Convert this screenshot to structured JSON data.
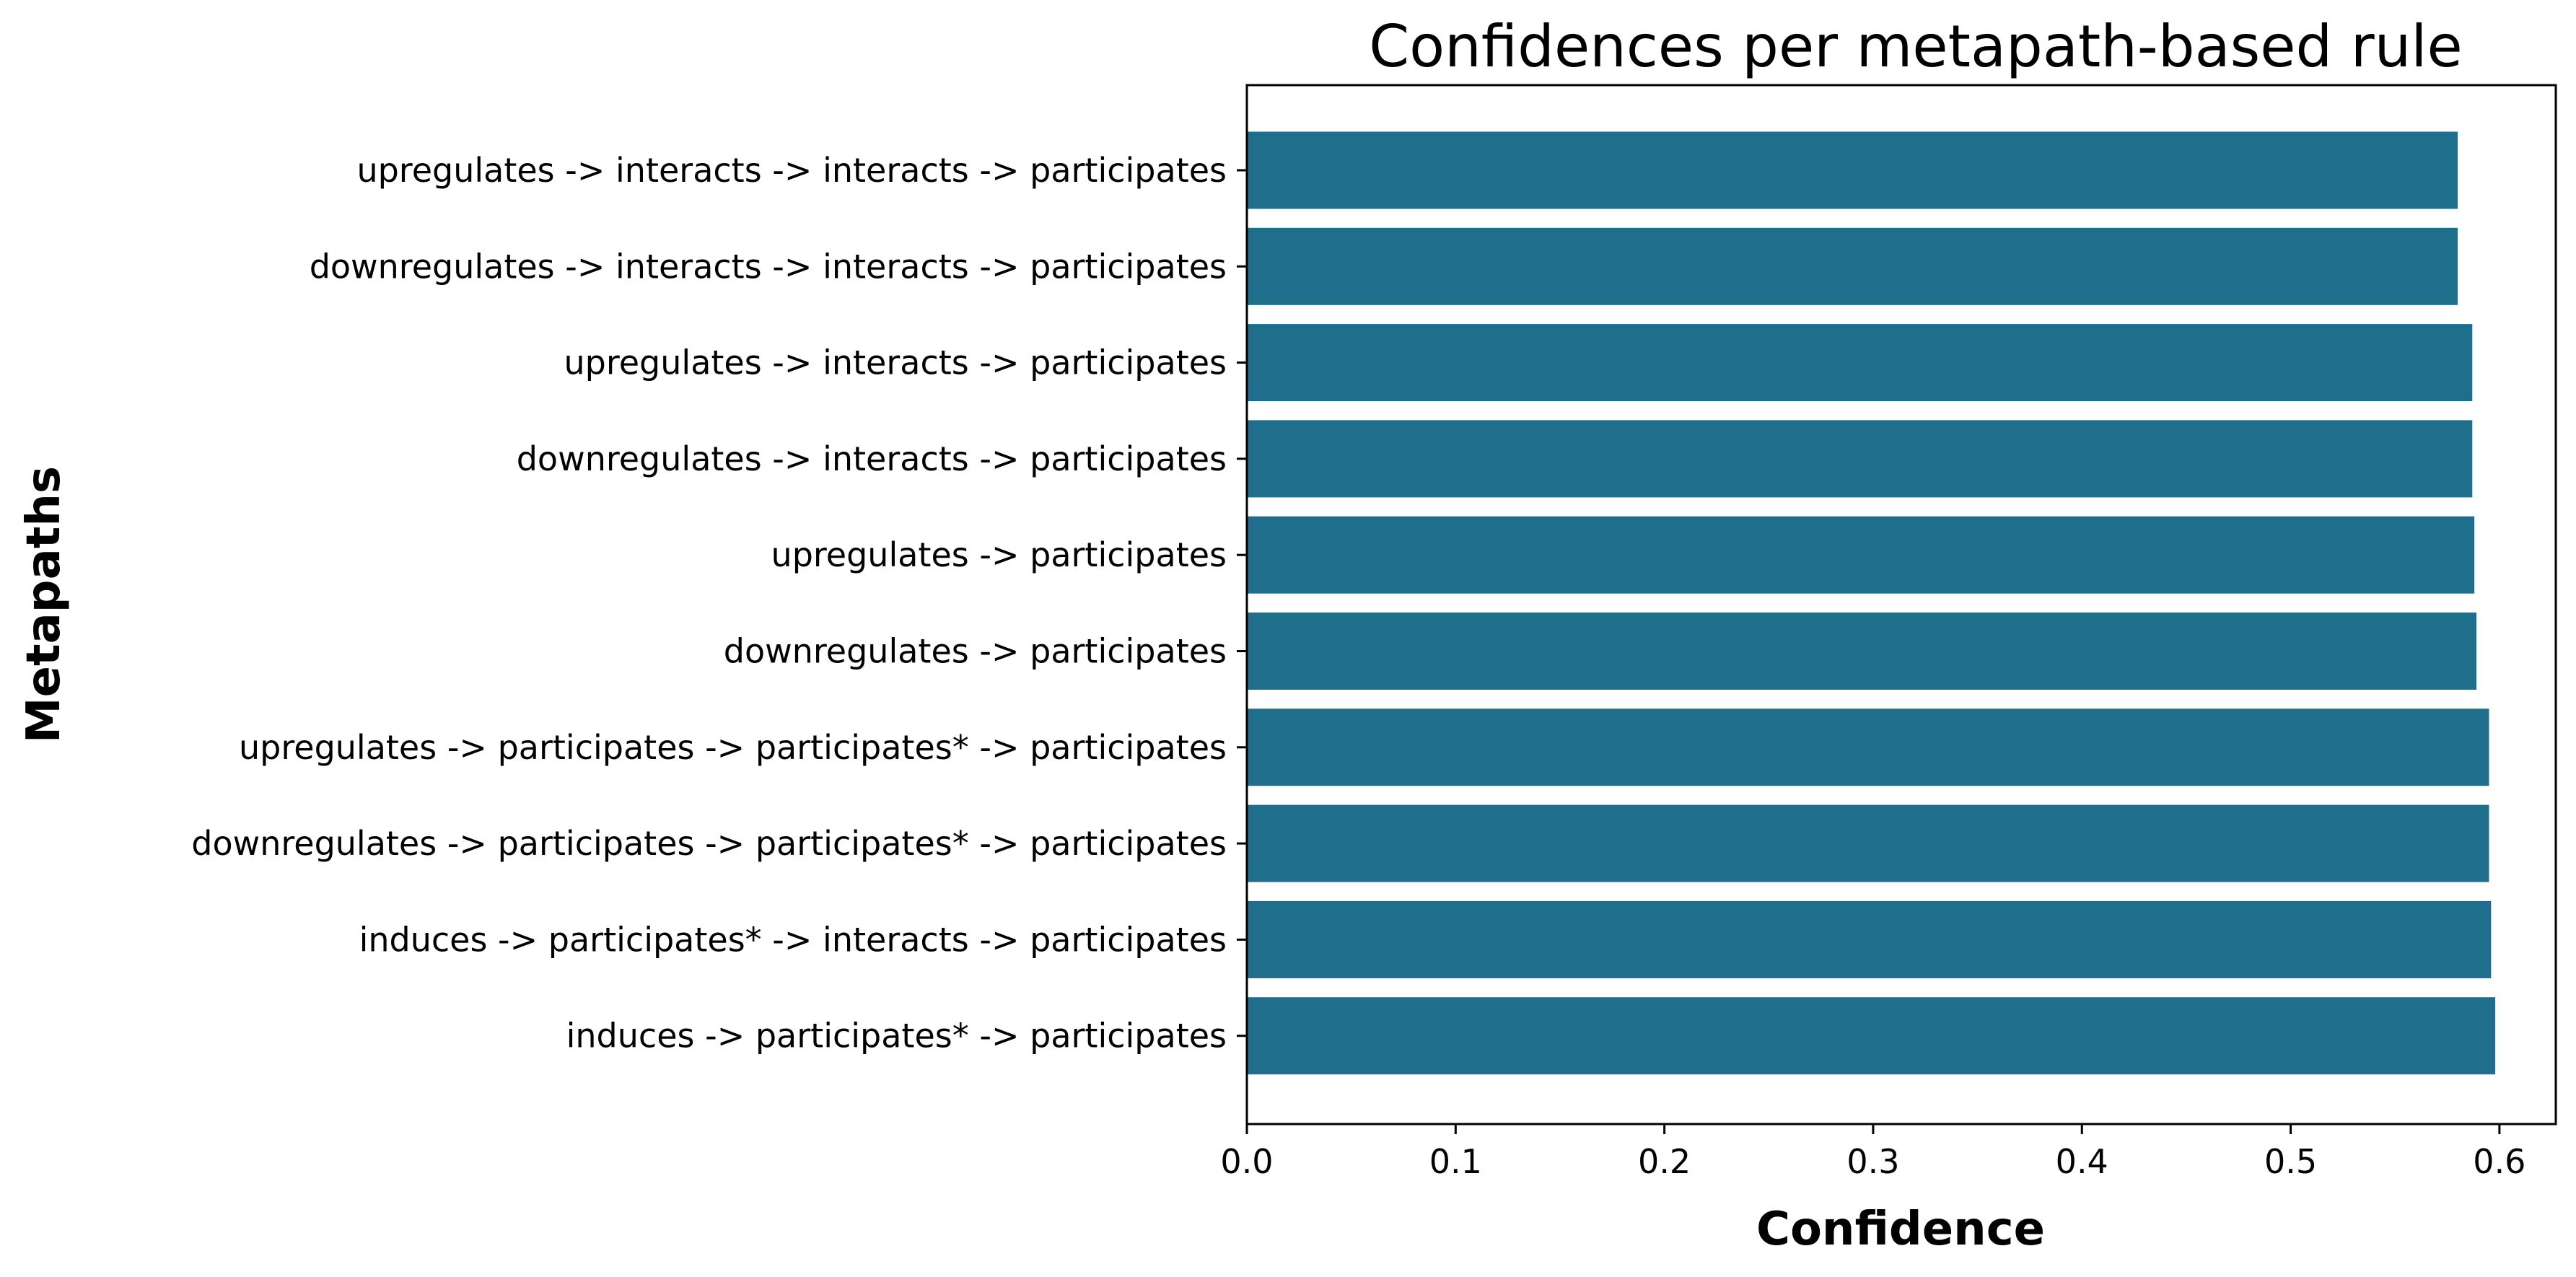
{
  "chart_data": {
    "type": "bar",
    "orientation": "horizontal",
    "title": "Confidences per metapath-based rule",
    "xlabel": "Confidence",
    "ylabel": "Metapaths",
    "xlim": [
      0,
      0.627
    ],
    "xticks": [
      "0.0",
      "0.1",
      "0.2",
      "0.3",
      "0.4",
      "0.5",
      "0.6"
    ],
    "grid": false,
    "bar_color": "#1f6e8c",
    "categories": [
      "upregulates -> interacts -> interacts -> participates",
      "downregulates -> interacts -> interacts -> participates",
      "upregulates -> interacts -> participates",
      "downregulates -> interacts -> participates",
      "upregulates -> participates",
      "downregulates -> participates",
      "upregulates -> participates -> participates* -> participates",
      "downregulates -> participates -> participates* -> participates",
      "induces -> participates* -> interacts -> participates",
      "induces -> participates* -> participates"
    ],
    "values": [
      0.58,
      0.58,
      0.587,
      0.587,
      0.588,
      0.589,
      0.595,
      0.595,
      0.596,
      0.598
    ]
  }
}
